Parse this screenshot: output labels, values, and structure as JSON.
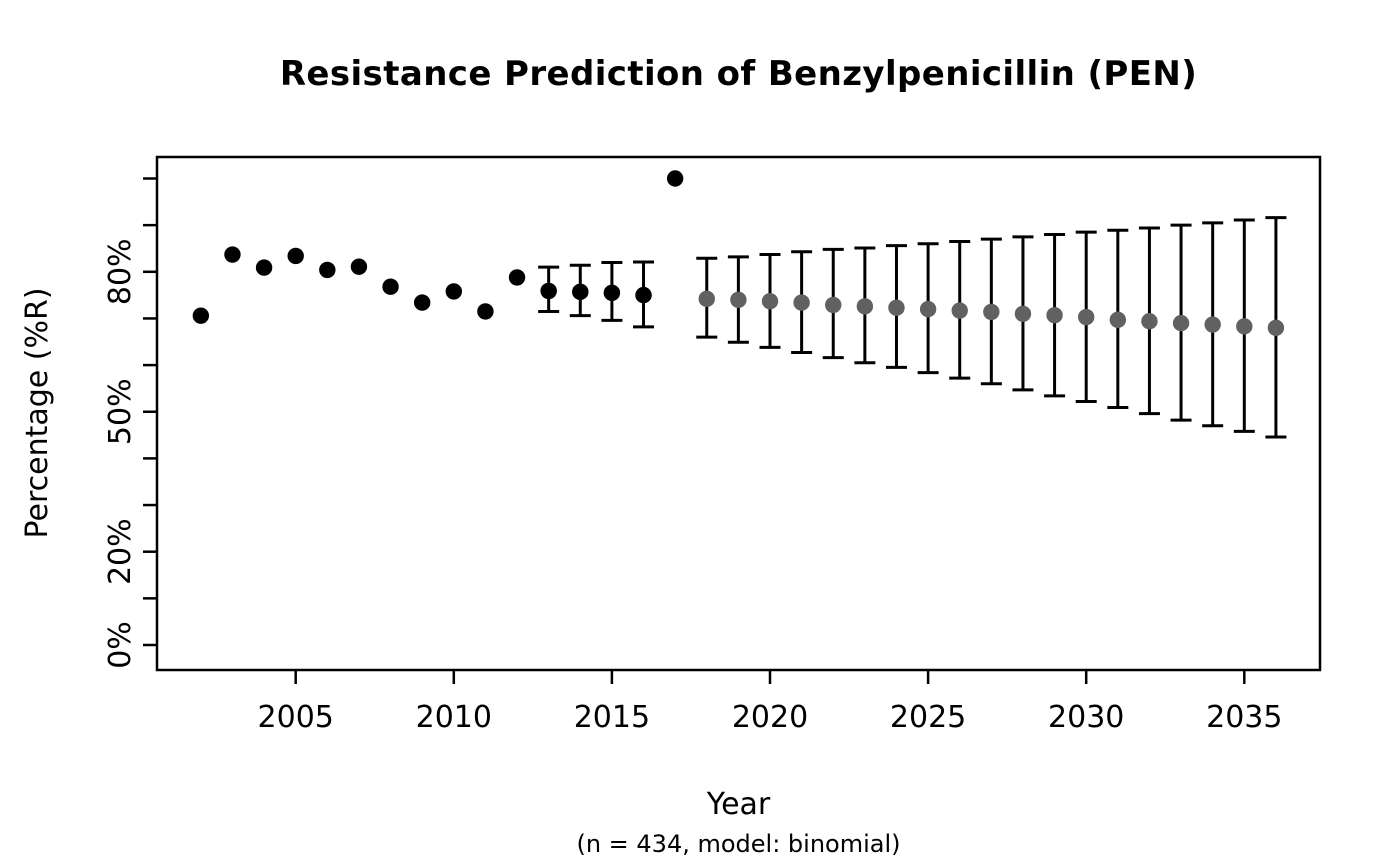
{
  "chart_data": {
    "type": "scatter",
    "title": "Resistance Prediction of Benzylpenicillin (PEN)",
    "xlabel": "Year",
    "xlabel_note": "(n = 434, model: binomial)",
    "ylabel": "Percentage (%R)",
    "n": 434,
    "model": "binomial",
    "grid": false,
    "legend": "none",
    "xlim": [
      2000.6,
      2037.4
    ],
    "ylim_pct": [
      -5,
      105
    ],
    "x_ticks": [
      2005,
      2010,
      2015,
      2020,
      2025,
      2030,
      2035
    ],
    "y_ticks": [
      {
        "value": 0,
        "label": "0%"
      },
      {
        "value": 10,
        "label": ""
      },
      {
        "value": 20,
        "label": "20%"
      },
      {
        "value": 30,
        "label": ""
      },
      {
        "value": 40,
        "label": ""
      },
      {
        "value": 50,
        "label": "50%"
      },
      {
        "value": 60,
        "label": ""
      },
      {
        "value": 70,
        "label": ""
      },
      {
        "value": 80,
        "label": "80%"
      },
      {
        "value": 90,
        "label": ""
      },
      {
        "value": 100,
        "label": ""
      }
    ],
    "series": [
      {
        "name": "observed",
        "label": "Observed resistance",
        "marker": "filled-circle",
        "color": "#000000",
        "points": [
          {
            "year": 2002,
            "value": 70.6
          },
          {
            "year": 2003,
            "value": 83.7
          },
          {
            "year": 2004,
            "value": 80.9
          },
          {
            "year": 2005,
            "value": 83.4
          },
          {
            "year": 2006,
            "value": 80.4
          },
          {
            "year": 2007,
            "value": 81.1
          },
          {
            "year": 2008,
            "value": 76.8
          },
          {
            "year": 2009,
            "value": 73.4
          },
          {
            "year": 2010,
            "value": 75.8
          },
          {
            "year": 2011,
            "value": 71.5
          },
          {
            "year": 2012,
            "value": 78.8
          },
          {
            "year": 2013,
            "value": 75.9
          },
          {
            "year": 2014,
            "value": 75.7
          },
          {
            "year": 2015,
            "value": 75.5
          },
          {
            "year": 2016,
            "value": 75.0
          },
          {
            "year": 2017,
            "value": 100.0
          }
        ]
      },
      {
        "name": "predicted",
        "label": "Predicted resistance with confidence interval",
        "marker": "filled-circle",
        "color": "#616161",
        "error_bar_color": "#000000",
        "points": [
          {
            "year": 2013,
            "value": 75.9,
            "ci_low": 71.5,
            "ci_high": 81.0
          },
          {
            "year": 2014,
            "value": 75.7,
            "ci_low": 70.6,
            "ci_high": 81.4
          },
          {
            "year": 2015,
            "value": 75.5,
            "ci_low": 69.6,
            "ci_high": 82.0
          },
          {
            "year": 2016,
            "value": 75.0,
            "ci_low": 68.2,
            "ci_high": 82.1
          },
          {
            "year": 2018,
            "value": 74.2,
            "ci_low": 66.0,
            "ci_high": 82.9
          },
          {
            "year": 2019,
            "value": 74.0,
            "ci_low": 64.9,
            "ci_high": 83.2
          },
          {
            "year": 2020,
            "value": 73.7,
            "ci_low": 63.8,
            "ci_high": 83.7
          },
          {
            "year": 2021,
            "value": 73.4,
            "ci_low": 62.7,
            "ci_high": 84.3
          },
          {
            "year": 2022,
            "value": 72.9,
            "ci_low": 61.6,
            "ci_high": 84.8
          },
          {
            "year": 2023,
            "value": 72.6,
            "ci_low": 60.5,
            "ci_high": 85.1
          },
          {
            "year": 2024,
            "value": 72.3,
            "ci_low": 59.5,
            "ci_high": 85.6
          },
          {
            "year": 2025,
            "value": 72.0,
            "ci_low": 58.4,
            "ci_high": 86.0
          },
          {
            "year": 2026,
            "value": 71.7,
            "ci_low": 57.2,
            "ci_high": 86.5
          },
          {
            "year": 2027,
            "value": 71.4,
            "ci_low": 56.0,
            "ci_high": 87.0
          },
          {
            "year": 2028,
            "value": 71.0,
            "ci_low": 54.7,
            "ci_high": 87.5
          },
          {
            "year": 2029,
            "value": 70.7,
            "ci_low": 53.4,
            "ci_high": 88.0
          },
          {
            "year": 2030,
            "value": 70.3,
            "ci_low": 52.2,
            "ci_high": 88.5
          },
          {
            "year": 2031,
            "value": 69.7,
            "ci_low": 50.9,
            "ci_high": 88.9
          },
          {
            "year": 2032,
            "value": 69.4,
            "ci_low": 49.6,
            "ci_high": 89.4
          },
          {
            "year": 2033,
            "value": 69.0,
            "ci_low": 48.2,
            "ci_high": 90.0
          },
          {
            "year": 2034,
            "value": 68.7,
            "ci_low": 47.0,
            "ci_high": 90.5
          },
          {
            "year": 2035,
            "value": 68.3,
            "ci_low": 45.8,
            "ci_high": 91.1
          },
          {
            "year": 2036,
            "value": 68.0,
            "ci_low": 44.6,
            "ci_high": 91.6
          }
        ]
      }
    ]
  }
}
